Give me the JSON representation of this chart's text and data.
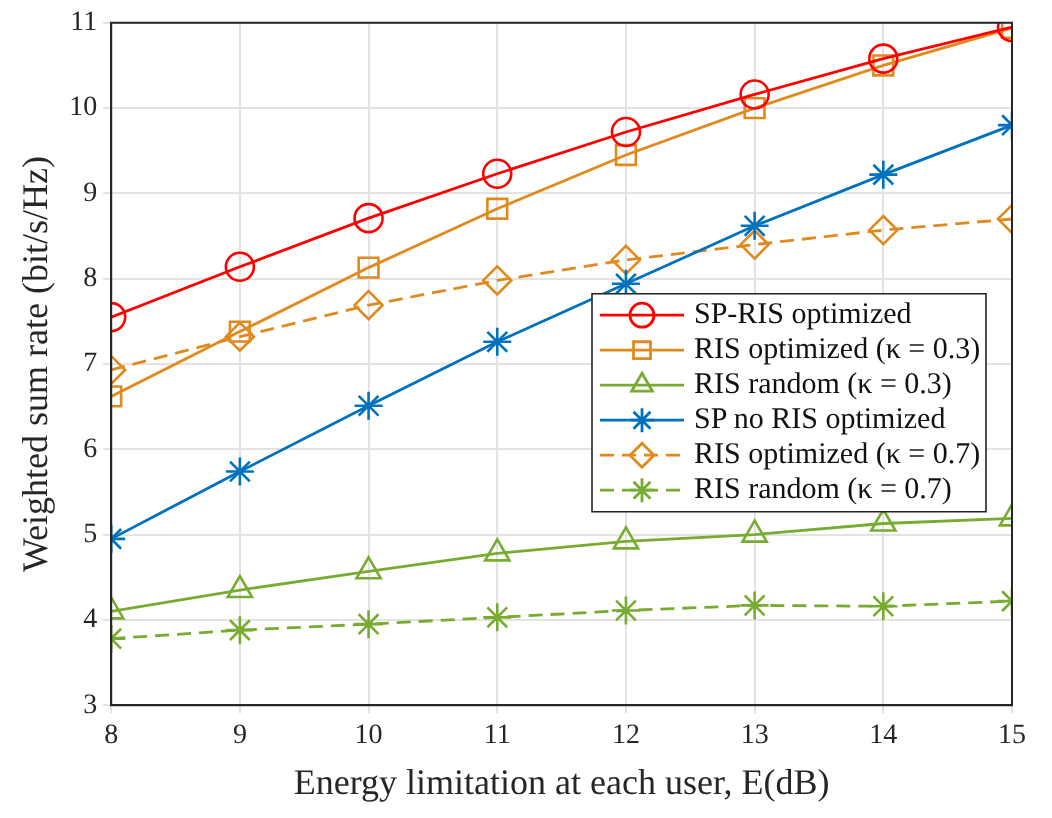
{
  "chart_data": {
    "type": "line",
    "xlabel": "Energy limitation at each user, E(dB)",
    "ylabel": "Weighted sum rate (bit/s/Hz)",
    "x": [
      8,
      9,
      10,
      11,
      12,
      13,
      14,
      15
    ],
    "xlim": [
      8,
      15
    ],
    "xticks": [
      8,
      9,
      10,
      11,
      12,
      13,
      14,
      15
    ],
    "ylim": [
      3,
      11
    ],
    "yticks": [
      3,
      4,
      5,
      6,
      7,
      8,
      9,
      10,
      11
    ],
    "grid": true,
    "legend": "right",
    "line_style": "solid",
    "series": [
      {
        "name": "SP-RIS optimized",
        "color": "#ff0000",
        "marker": "circle",
        "values": [
          7.55,
          8.14,
          8.71,
          9.23,
          9.72,
          10.16,
          10.58,
          10.95
        ]
      },
      {
        "name": "RIS optimized (κ = 0.3)",
        "color": "#e08a1e",
        "marker": "square",
        "values": [
          6.62,
          7.38,
          8.13,
          8.82,
          9.45,
          10.0,
          10.5,
          10.94
        ]
      },
      {
        "name": "RIS random (κ = 0.3)",
        "color": "#77ac30",
        "marker": "triangle",
        "values": [
          4.1,
          4.35,
          4.57,
          4.78,
          4.92,
          5.0,
          5.13,
          5.19
        ]
      },
      {
        "name": "SP no RIS optimized",
        "color": "#0072bd",
        "marker": "cross",
        "values": [
          4.95,
          5.74,
          6.51,
          7.26,
          7.94,
          8.62,
          9.22,
          9.8
        ]
      },
      {
        "name": "RIS optimized (κ = 0.7)",
        "color": "#e08a1e",
        "marker": "diamond",
        "line_style": "dashed",
        "values": [
          6.93,
          7.32,
          7.69,
          7.98,
          8.22,
          8.4,
          8.57,
          8.7
        ]
      },
      {
        "name": "RIS random (κ = 0.7)",
        "color": "#77ac30",
        "marker": "cross",
        "line_style": "dashed",
        "values": [
          3.78,
          3.88,
          3.95,
          4.03,
          4.11,
          4.17,
          4.16,
          4.22
        ]
      }
    ]
  }
}
